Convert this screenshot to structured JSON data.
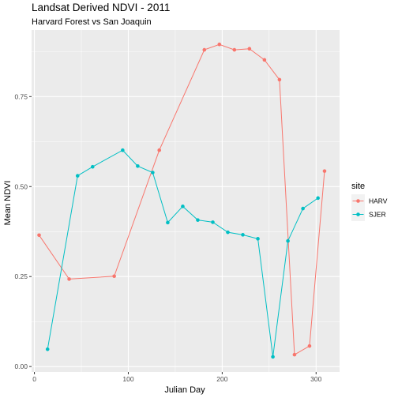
{
  "chart_data": {
    "type": "line",
    "title": "Landsat Derived NDVI - 2011",
    "subtitle": "Harvard Forest vs San Joaquin",
    "xlabel": "Julian Day",
    "ylabel": "Mean NDVI",
    "xlim": [
      -3,
      325
    ],
    "ylim": [
      -0.015,
      0.935
    ],
    "x_ticks": [
      0,
      100,
      200,
      300
    ],
    "x_tick_labels": [
      "0",
      "100",
      "200",
      "300"
    ],
    "y_ticks": [
      0,
      0.25,
      0.5,
      0.75
    ],
    "y_tick_labels": [
      "0.00",
      "0.25",
      "0.50",
      "0.75"
    ],
    "grid": true,
    "background": "#EBEBEB",
    "legend": {
      "title": "site",
      "position": "right"
    },
    "series": [
      {
        "name": "HARV",
        "color": "#F8766D",
        "x": [
          5,
          37,
          85,
          133,
          181,
          197,
          213,
          229,
          245,
          261,
          277,
          293,
          309
        ],
        "y": [
          0.365,
          0.243,
          0.251,
          0.601,
          0.88,
          0.895,
          0.88,
          0.883,
          0.852,
          0.797,
          0.033,
          0.057,
          0.543
        ]
      },
      {
        "name": "SJER",
        "color": "#00BFC4",
        "x": [
          14,
          46,
          62,
          94,
          110,
          126,
          142,
          158,
          174,
          190,
          206,
          222,
          238,
          254,
          270,
          286,
          302
        ],
        "y": [
          0.048,
          0.53,
          0.555,
          0.601,
          0.557,
          0.539,
          0.4,
          0.445,
          0.407,
          0.401,
          0.373,
          0.366,
          0.355,
          0.027,
          0.349,
          0.439,
          0.468
        ]
      }
    ]
  }
}
